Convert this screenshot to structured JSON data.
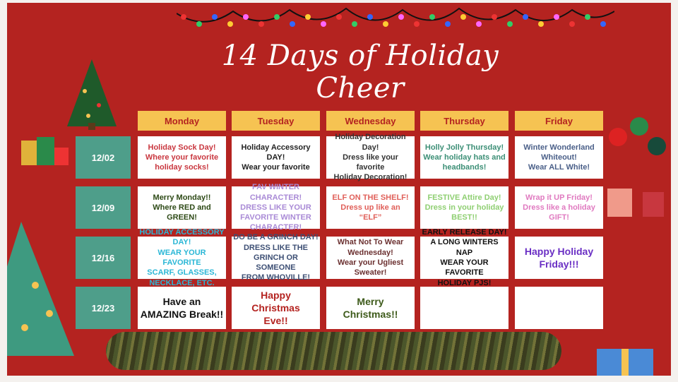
{
  "title": "14 Days of Holiday Cheer",
  "days": [
    "Monday",
    "Tuesday",
    "Wednesday",
    "Thursday",
    "Friday"
  ],
  "weeks": [
    {
      "date": "12/02",
      "cells": [
        {
          "text": "Holiday Sock Day!\nWhere your favorite holiday socks!",
          "color": "#c9373f"
        },
        {
          "text": "Holiday Accessory\nDAY!\nWear your favorite",
          "color": "#222222"
        },
        {
          "text": "Holiday Decoration\nDay!\nDress like your favorite\nHoliday Decoration!",
          "color": "#333333"
        },
        {
          "text": "Holly Jolly Thursday!\nWear holiday hats and\nheadbands!",
          "color": "#3c8f76"
        },
        {
          "text": "Winter Wonderland\nWhiteout!\nWear ALL White!",
          "color": "#4a5f88"
        }
      ]
    },
    {
      "date": "12/09",
      "cells": [
        {
          "text": "Merry Monday!!\nWhere RED and\nGREEN!",
          "color": "#2e4a17"
        },
        {
          "text": "FAV WINTER CHARACTER!\nDRESS LIKE YOUR\nFAVORITE WINTER\nCHARACTER!",
          "color": "#a98ad6"
        },
        {
          "text": "ELF ON THE SHELF!\nDress up like an\n“ELF”",
          "color": "#e0605a"
        },
        {
          "text": "FESTIVE Attire Day!\nDress in your holiday\nBEST!!",
          "color": "#8fcf72"
        },
        {
          "text": "Wrap it UP Friday!\nDress like a holiday\nGIFT!",
          "color": "#e07ac0"
        }
      ]
    },
    {
      "date": "12/16",
      "cells": [
        {
          "text": "HOLIDAY ACCESSORY DAY!\nWEAR YOUR FAVORITE\nSCARF, GLASSES,\nNECKLACE, ETC.",
          "color": "#2bb7d6"
        },
        {
          "text": "DO BE A GRINCH DAY!\nDRESS LIKE THE\nGRINCH OR SOMEONE\nFROM WHOVILLE!",
          "color": "#3d4f74"
        },
        {
          "text": "What Not To Wear\nWednesday!\nWear your Ugliest Sweater!",
          "color": "#6b3030"
        },
        {
          "text": "EARLY RELEASE DAY!\nA LONG WINTERS NAP\nWEAR YOUR FAVORITE\nHOLIDAY PJS!",
          "color": "#111111"
        },
        {
          "text": "Happy Holiday\nFriday!!!",
          "color": "#6a2fc4"
        }
      ]
    },
    {
      "date": "12/23",
      "cells": [
        {
          "text": "Have an\nAMAZING Break!!",
          "color": "#111111"
        },
        {
          "text": "Happy\nChristmas\nEve!!",
          "color": "#b42320"
        },
        {
          "text": "Merry\nChristmas!!",
          "color": "#3d5a1a"
        },
        {
          "text": "",
          "color": "#000000"
        },
        {
          "text": "",
          "color": "#000000"
        }
      ]
    }
  ],
  "colors": {
    "background": "#b42320",
    "header": "#f6c352",
    "date": "#4e9e8a"
  }
}
